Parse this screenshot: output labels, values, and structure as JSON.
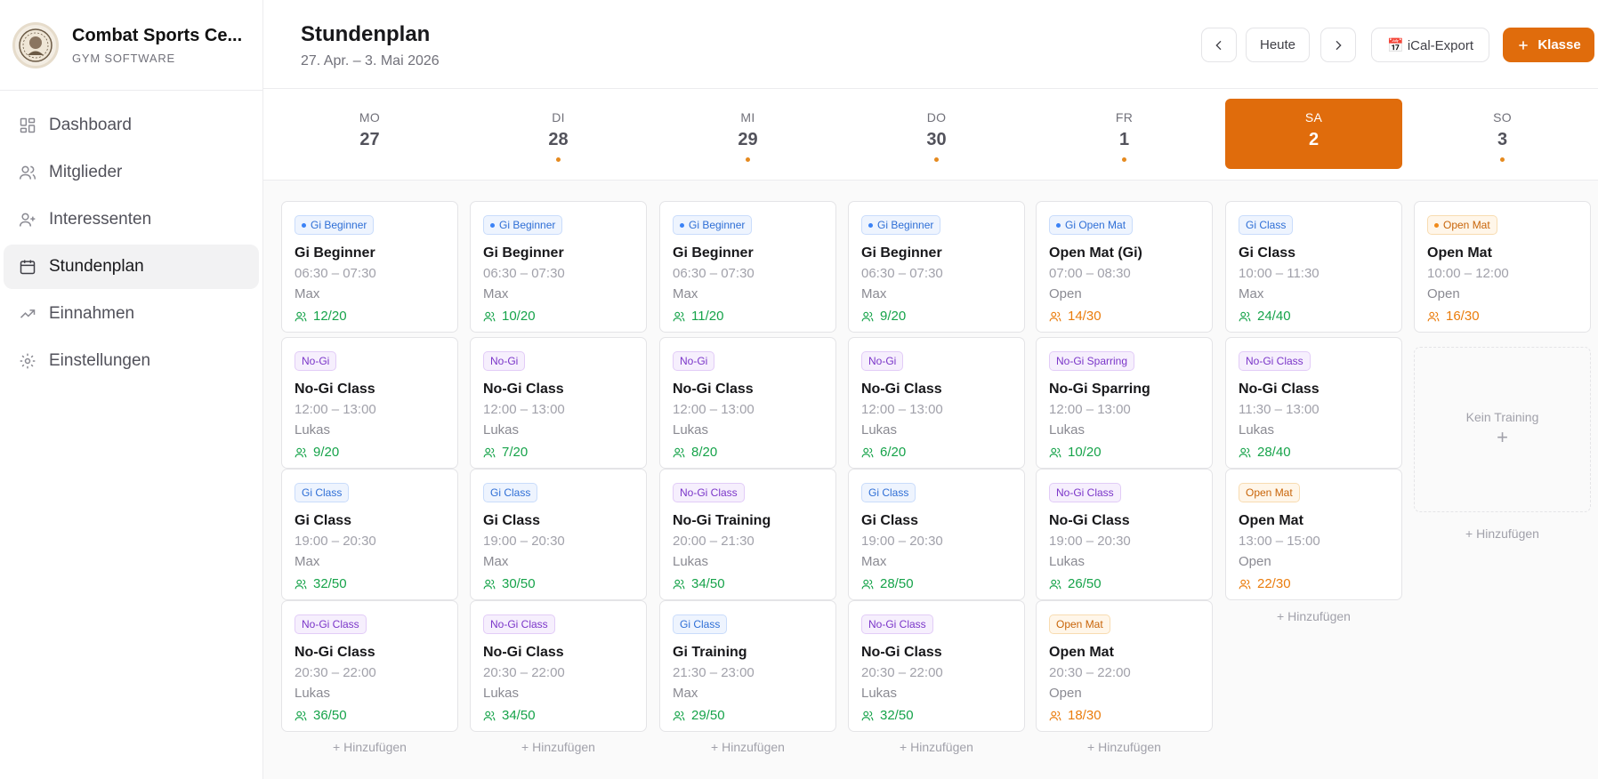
{
  "brand": {
    "name": "Combat Sports Ce...",
    "subtitle": "GYM SOFTWARE"
  },
  "nav": [
    {
      "label": "Dashboard",
      "icon": "grid-icon"
    },
    {
      "label": "Mitglieder",
      "icon": "users-icon"
    },
    {
      "label": "Interessenten",
      "icon": "user-plus-icon"
    },
    {
      "label": "Stundenplan",
      "icon": "calendar-icon",
      "active": true
    },
    {
      "label": "Einnahmen",
      "icon": "trending-up-icon"
    },
    {
      "label": "Einstellungen",
      "icon": "gear-icon"
    }
  ],
  "header": {
    "title": "Stundenplan",
    "date_range": "27. Apr. – 3. Mai 2026",
    "today_label": "Heute",
    "ical_label": "📅 iCal-Export",
    "add_label": "Klasse"
  },
  "colors": {
    "accent": "#e06c0c",
    "capacity_ok": "#16a34a",
    "capacity_warn": "#ea7c0c",
    "tag_blue": "#2f6fd6",
    "tag_purple": "#7b36c9",
    "tag_orange": "#c8650a"
  },
  "days": [
    {
      "name": "MO",
      "num": "27",
      "dot": false
    },
    {
      "name": "DI",
      "num": "28",
      "dot": true
    },
    {
      "name": "MI",
      "num": "29",
      "dot": true
    },
    {
      "name": "DO",
      "num": "30",
      "dot": true
    },
    {
      "name": "FR",
      "num": "1",
      "dot": true
    },
    {
      "name": "SA",
      "num": "2",
      "active": true
    },
    {
      "name": "SO",
      "num": "3",
      "dot": true
    }
  ],
  "add_label": "+ Hinzufügen",
  "empty": {
    "text": "Kein Training",
    "plus": "+"
  },
  "columns": [
    [
      {
        "tag": "Gi Beginner",
        "tagColor": "blue",
        "dot": true,
        "title": "Gi Beginner",
        "time": "06:30 – 07:30",
        "trainer": "Max",
        "cap": "12/20",
        "capColor": "green"
      },
      {
        "tag": "No-Gi",
        "tagColor": "purple",
        "dot": false,
        "title": "No-Gi Class",
        "time": "12:00 – 13:00",
        "trainer": "Lukas",
        "cap": "9/20",
        "capColor": "green"
      },
      {
        "tag": "Gi Class",
        "tagColor": "blue",
        "dot": false,
        "title": "Gi Class",
        "time": "19:00 – 20:30",
        "trainer": "Max",
        "cap": "32/50",
        "capColor": "green"
      },
      {
        "tag": "No-Gi Class",
        "tagColor": "purple",
        "dot": false,
        "title": "No-Gi Class",
        "time": "20:30 – 22:00",
        "trainer": "Lukas",
        "cap": "36/50",
        "capColor": "green"
      }
    ],
    [
      {
        "tag": "Gi Beginner",
        "tagColor": "blue",
        "dot": true,
        "title": "Gi Beginner",
        "time": "06:30 – 07:30",
        "trainer": "Max",
        "cap": "10/20",
        "capColor": "green"
      },
      {
        "tag": "No-Gi",
        "tagColor": "purple",
        "dot": false,
        "title": "No-Gi Class",
        "time": "12:00 – 13:00",
        "trainer": "Lukas",
        "cap": "7/20",
        "capColor": "green"
      },
      {
        "tag": "Gi Class",
        "tagColor": "blue",
        "dot": false,
        "title": "Gi Class",
        "time": "19:00 – 20:30",
        "trainer": "Max",
        "cap": "30/50",
        "capColor": "green"
      },
      {
        "tag": "No-Gi Class",
        "tagColor": "purple",
        "dot": false,
        "title": "No-Gi Class",
        "time": "20:30 – 22:00",
        "trainer": "Lukas",
        "cap": "34/50",
        "capColor": "green"
      }
    ],
    [
      {
        "tag": "Gi Beginner",
        "tagColor": "blue",
        "dot": true,
        "title": "Gi Beginner",
        "time": "06:30 – 07:30",
        "trainer": "Max",
        "cap": "11/20",
        "capColor": "green"
      },
      {
        "tag": "No-Gi",
        "tagColor": "purple",
        "dot": false,
        "title": "No-Gi Class",
        "time": "12:00 – 13:00",
        "trainer": "Lukas",
        "cap": "8/20",
        "capColor": "green"
      },
      {
        "tag": "No-Gi Class",
        "tagColor": "purple",
        "dot": false,
        "title": "No-Gi Training",
        "time": "20:00 – 21:30",
        "trainer": "Lukas",
        "cap": "34/50",
        "capColor": "green"
      },
      {
        "tag": "Gi Class",
        "tagColor": "blue",
        "dot": false,
        "title": "Gi Training",
        "time": "21:30 – 23:00",
        "trainer": "Max",
        "cap": "29/50",
        "capColor": "green"
      }
    ],
    [
      {
        "tag": "Gi Beginner",
        "tagColor": "blue",
        "dot": true,
        "title": "Gi Beginner",
        "time": "06:30 – 07:30",
        "trainer": "Max",
        "cap": "9/20",
        "capColor": "green"
      },
      {
        "tag": "No-Gi",
        "tagColor": "purple",
        "dot": false,
        "title": "No-Gi Class",
        "time": "12:00 – 13:00",
        "trainer": "Lukas",
        "cap": "6/20",
        "capColor": "green"
      },
      {
        "tag": "Gi Class",
        "tagColor": "blue",
        "dot": false,
        "title": "Gi Class",
        "time": "19:00 – 20:30",
        "trainer": "Max",
        "cap": "28/50",
        "capColor": "green"
      },
      {
        "tag": "No-Gi Class",
        "tagColor": "purple",
        "dot": false,
        "title": "No-Gi Class",
        "time": "20:30 – 22:00",
        "trainer": "Lukas",
        "cap": "32/50",
        "capColor": "green"
      }
    ],
    [
      {
        "tag": "Gi Open Mat",
        "tagColor": "blue",
        "dot": true,
        "title": "Open Mat (Gi)",
        "time": "07:00 – 08:30",
        "trainer": "Open",
        "cap": "14/30",
        "capColor": "orange"
      },
      {
        "tag": "No-Gi Sparring",
        "tagColor": "purple",
        "dot": false,
        "title": "No-Gi Sparring",
        "time": "12:00 – 13:00",
        "trainer": "Lukas",
        "cap": "10/20",
        "capColor": "green"
      },
      {
        "tag": "No-Gi Class",
        "tagColor": "purple",
        "dot": false,
        "title": "No-Gi Class",
        "time": "19:00 – 20:30",
        "trainer": "Lukas",
        "cap": "26/50",
        "capColor": "green"
      },
      {
        "tag": "Open Mat",
        "tagColor": "orange",
        "dot": false,
        "title": "Open Mat",
        "time": "20:30 – 22:00",
        "trainer": "Open",
        "cap": "18/30",
        "capColor": "orange"
      }
    ],
    [
      {
        "tag": "Gi Class",
        "tagColor": "blue",
        "dot": false,
        "title": "Gi Class",
        "time": "10:00 – 11:30",
        "trainer": "Max",
        "cap": "24/40",
        "capColor": "green"
      },
      {
        "tag": "No-Gi Class",
        "tagColor": "purple",
        "dot": false,
        "title": "No-Gi Class",
        "time": "11:30 – 13:00",
        "trainer": "Lukas",
        "cap": "28/40",
        "capColor": "green"
      },
      {
        "tag": "Open Mat",
        "tagColor": "orange",
        "dot": false,
        "title": "Open Mat",
        "time": "13:00 – 15:00",
        "trainer": "Open",
        "cap": "22/30",
        "capColor": "orange"
      }
    ],
    [
      {
        "tag": "Open Mat",
        "tagColor": "orange",
        "dot": true,
        "title": "Open Mat",
        "time": "10:00 – 12:00",
        "trainer": "Open",
        "cap": "16/30",
        "capColor": "orange"
      }
    ]
  ]
}
